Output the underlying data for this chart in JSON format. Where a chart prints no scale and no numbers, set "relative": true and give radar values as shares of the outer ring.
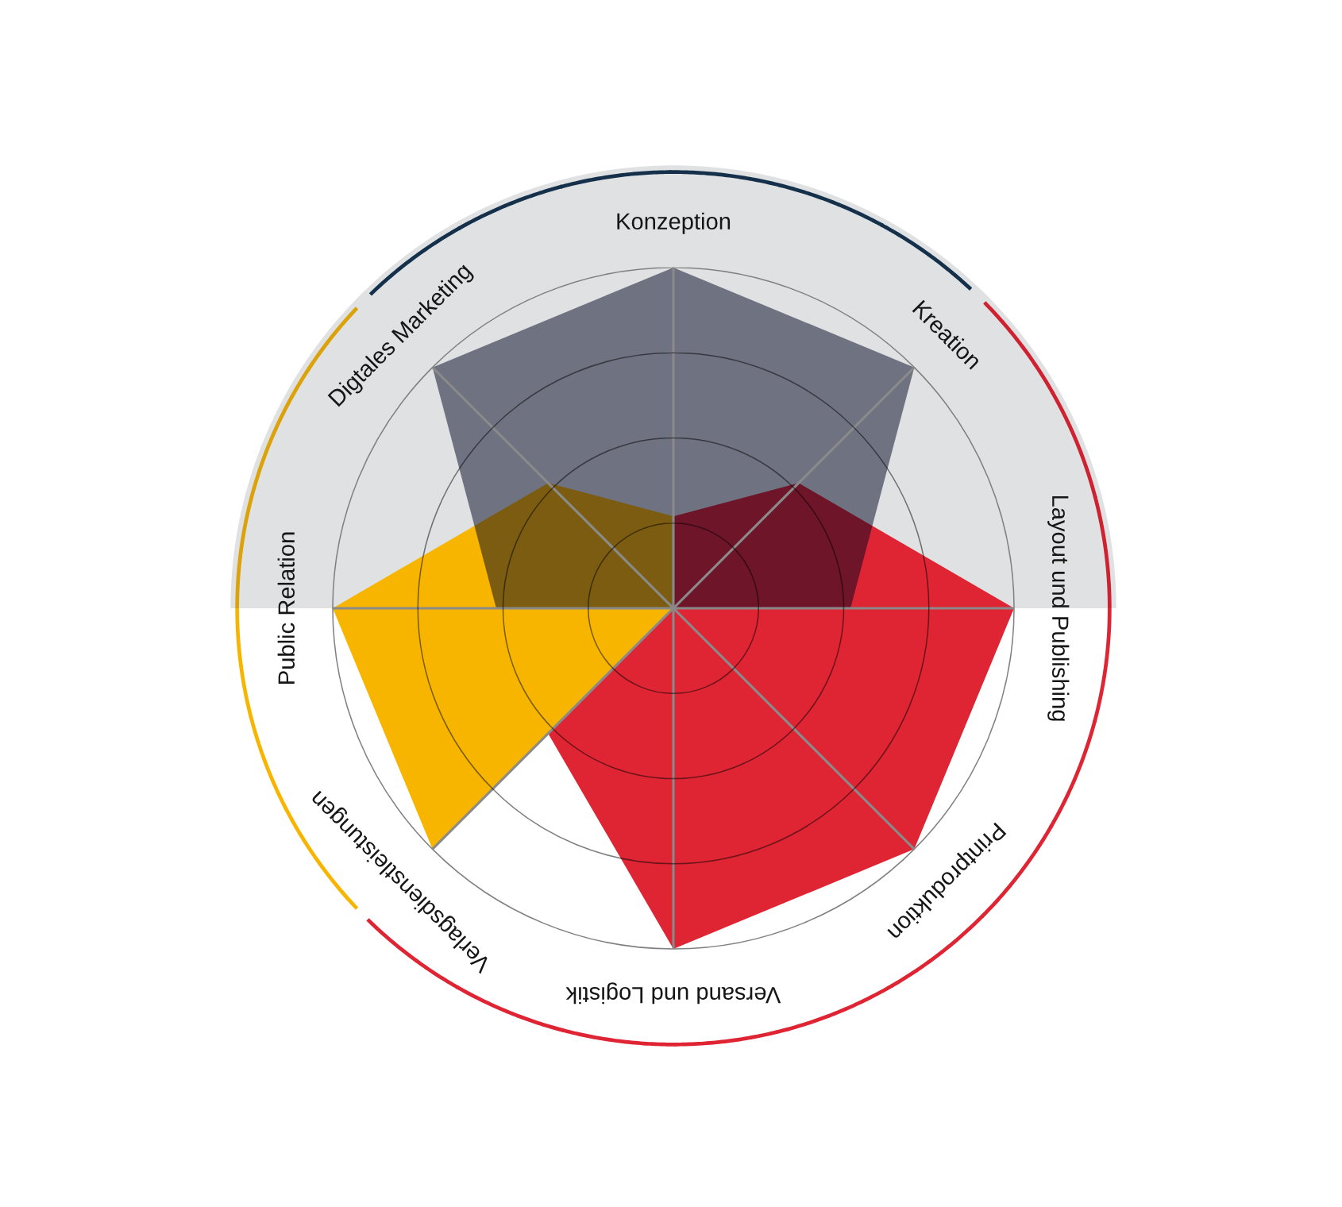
{
  "chart_data": {
    "type": "radar",
    "relative": true,
    "grid": true,
    "categories": [
      "Konzeption",
      "Kreation",
      "Layout und Publishing",
      "Printproduktion",
      "Versand und Logistik",
      "Verlagsdienstleistungen",
      "Public Relation",
      "Digtales Marketing"
    ],
    "series": [
      {
        "color": "#df2533",
        "values": [
          0.27,
          0.52,
          1,
          1,
          1,
          0.52,
          0,
          0
        ]
      },
      {
        "color": "#f8b500",
        "values": [
          0.27,
          0,
          0,
          0,
          0,
          1,
          1,
          0.52
        ]
      },
      {
        "color": "#6f7280",
        "values": [
          1,
          1,
          0.52,
          0,
          0,
          0,
          0.52,
          1
        ]
      }
    ]
  }
}
